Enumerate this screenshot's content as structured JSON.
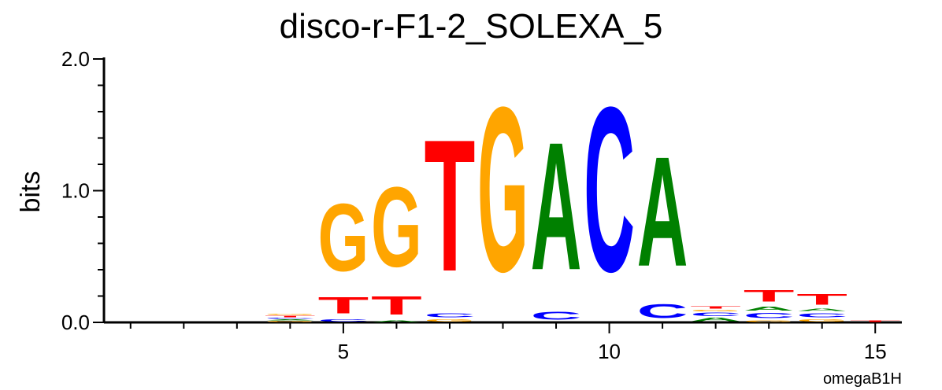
{
  "chart_data": {
    "type": "sequence-logo",
    "title": "disco-r-F1-2_SOLEXA_5",
    "ylabel": "bits",
    "xlabel": "",
    "credit": "omegaB1H",
    "ylim": [
      0,
      2
    ],
    "yticks": [
      "0.0",
      "1.0",
      "2.0"
    ],
    "xlim": [
      0.5,
      15.5
    ],
    "xticks": [
      5,
      10,
      15
    ],
    "colors": {
      "A": "#008000",
      "C": "#0000ff",
      "G": "#ffa500",
      "T": "#ff0000"
    },
    "positions": [
      {
        "pos": 4,
        "stack": [
          {
            "b": "G",
            "h": 0.012
          },
          {
            "b": "A",
            "h": 0.012
          },
          {
            "b": "C",
            "h": 0.012
          },
          {
            "b": "T",
            "h": 0.02
          },
          {
            "b": "G",
            "h": 0.01
          }
        ]
      },
      {
        "pos": 5,
        "stack": [
          {
            "b": "C",
            "h": 0.03
          },
          {
            "b": "T",
            "h": 0.2
          },
          {
            "b": "G",
            "h": 0.82
          }
        ]
      },
      {
        "pos": 6,
        "stack": [
          {
            "b": "A",
            "h": 0.015
          },
          {
            "b": "T",
            "h": 0.22
          },
          {
            "b": "G",
            "h": 0.97
          }
        ]
      },
      {
        "pos": 7,
        "stack": [
          {
            "b": "G",
            "h": 0.03
          },
          {
            "b": "C",
            "h": 0.05
          },
          {
            "b": "T",
            "h": 1.6
          }
        ]
      },
      {
        "pos": 8,
        "stack": [
          {
            "b": "G",
            "h": 2.0
          }
        ]
      },
      {
        "pos": 9,
        "stack": [
          {
            "b": "C",
            "h": 0.1
          },
          {
            "b": "A",
            "h": 1.55
          }
        ]
      },
      {
        "pos": 10,
        "stack": [
          {
            "b": "C",
            "h": 2.0
          }
        ]
      },
      {
        "pos": 11,
        "stack": [
          {
            "b": "C",
            "h": 0.17
          },
          {
            "b": "A",
            "h": 1.33
          }
        ]
      },
      {
        "pos": 12,
        "stack": [
          {
            "b": "A",
            "h": 0.04
          },
          {
            "b": "C",
            "h": 0.04
          },
          {
            "b": "G",
            "h": 0.02
          },
          {
            "b": "T",
            "h": 0.03
          }
        ]
      },
      {
        "pos": 13,
        "stack": [
          {
            "b": "G",
            "h": 0.02
          },
          {
            "b": "C",
            "h": 0.06
          },
          {
            "b": "A",
            "h": 0.05
          },
          {
            "b": "T",
            "h": 0.14
          }
        ]
      },
      {
        "pos": 14,
        "stack": [
          {
            "b": "G",
            "h": 0.03
          },
          {
            "b": "C",
            "h": 0.05
          },
          {
            "b": "A",
            "h": 0.03
          },
          {
            "b": "T",
            "h": 0.13
          }
        ]
      },
      {
        "pos": 15,
        "stack": [
          {
            "b": "T",
            "h": 0.015
          }
        ]
      }
    ]
  }
}
